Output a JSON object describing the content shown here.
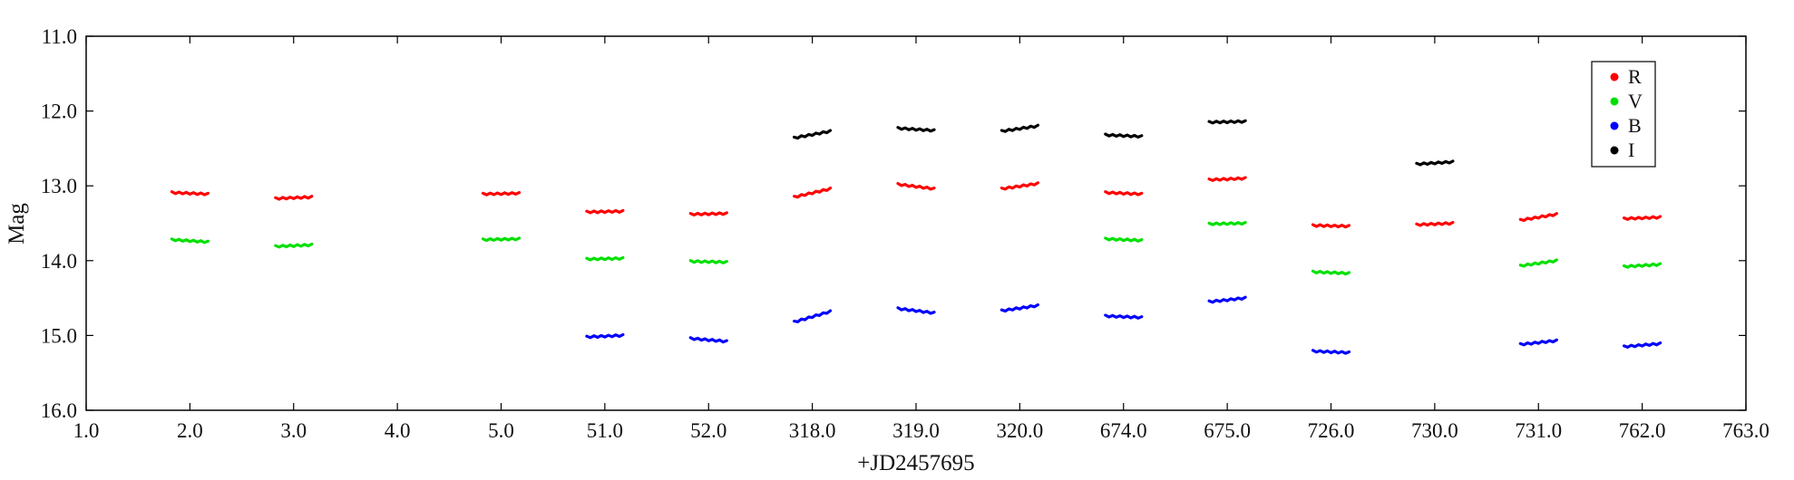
{
  "chart_data": {
    "type": "scatter",
    "title": "",
    "xlabel": "+JD2457695",
    "ylabel": "Mag",
    "x_tick_labels": [
      "1.0",
      "2.0",
      "3.0",
      "4.0",
      "5.0",
      "51.0",
      "52.0",
      "318.0",
      "319.0",
      "320.0",
      "674.0",
      "675.0",
      "726.0",
      "730.0",
      "731.0",
      "762.0",
      "763.0"
    ],
    "y_tick_labels": [
      "11.0",
      "12.0",
      "13.0",
      "14.0",
      "15.0",
      "16.0"
    ],
    "ylim": [
      16.0,
      11.0
    ],
    "y_inverted": true,
    "grid": false,
    "legend_position": "top-right",
    "series": [
      {
        "name": "R",
        "color": "#ff0000",
        "segments": [
          {
            "x": 2.0,
            "y_start": 13.09,
            "y_end": 13.11
          },
          {
            "x": 3.0,
            "y_start": 13.17,
            "y_end": 13.15
          },
          {
            "x": 5.0,
            "y_start": 13.11,
            "y_end": 13.1
          },
          {
            "x": 51.0,
            "y_start": 13.35,
            "y_end": 13.34
          },
          {
            "x": 52.0,
            "y_start": 13.38,
            "y_end": 13.37
          },
          {
            "x": 318.0,
            "y_start": 13.15,
            "y_end": 13.04
          },
          {
            "x": 319.0,
            "y_start": 12.98,
            "y_end": 13.04
          },
          {
            "x": 320.0,
            "y_start": 13.04,
            "y_end": 12.97
          },
          {
            "x": 674.0,
            "y_start": 13.09,
            "y_end": 13.11
          },
          {
            "x": 675.0,
            "y_start": 12.92,
            "y_end": 12.9
          },
          {
            "x": 726.0,
            "y_start": 13.53,
            "y_end": 13.54
          },
          {
            "x": 730.0,
            "y_start": 13.52,
            "y_end": 13.5
          },
          {
            "x": 731.0,
            "y_start": 13.46,
            "y_end": 13.38
          },
          {
            "x": 762.0,
            "y_start": 13.44,
            "y_end": 13.42
          }
        ]
      },
      {
        "name": "V",
        "color": "#00e000",
        "segments": [
          {
            "x": 2.0,
            "y_start": 13.72,
            "y_end": 13.75
          },
          {
            "x": 3.0,
            "y_start": 13.81,
            "y_end": 13.79
          },
          {
            "x": 5.0,
            "y_start": 13.72,
            "y_end": 13.71
          },
          {
            "x": 51.0,
            "y_start": 13.98,
            "y_end": 13.97
          },
          {
            "x": 52.0,
            "y_start": 14.01,
            "y_end": 14.02
          },
          {
            "x": 674.0,
            "y_start": 13.71,
            "y_end": 13.73
          },
          {
            "x": 675.0,
            "y_start": 13.51,
            "y_end": 13.5
          },
          {
            "x": 726.0,
            "y_start": 14.15,
            "y_end": 14.17
          },
          {
            "x": 731.0,
            "y_start": 14.07,
            "y_end": 14.0
          },
          {
            "x": 762.0,
            "y_start": 14.08,
            "y_end": 14.05
          }
        ]
      },
      {
        "name": "B",
        "color": "#0000ff",
        "segments": [
          {
            "x": 51.0,
            "y_start": 15.02,
            "y_end": 15.0
          },
          {
            "x": 52.0,
            "y_start": 15.04,
            "y_end": 15.08
          },
          {
            "x": 318.0,
            "y_start": 14.82,
            "y_end": 14.68
          },
          {
            "x": 319.0,
            "y_start": 14.64,
            "y_end": 14.7
          },
          {
            "x": 320.0,
            "y_start": 14.67,
            "y_end": 14.6
          },
          {
            "x": 674.0,
            "y_start": 14.74,
            "y_end": 14.76
          },
          {
            "x": 675.0,
            "y_start": 14.55,
            "y_end": 14.5
          },
          {
            "x": 726.0,
            "y_start": 15.21,
            "y_end": 15.23
          },
          {
            "x": 731.0,
            "y_start": 15.12,
            "y_end": 15.07
          },
          {
            "x": 762.0,
            "y_start": 15.15,
            "y_end": 15.11
          }
        ]
      },
      {
        "name": "I",
        "color": "#000000",
        "segments": [
          {
            "x": 318.0,
            "y_start": 12.36,
            "y_end": 12.27
          },
          {
            "x": 319.0,
            "y_start": 12.23,
            "y_end": 12.26
          },
          {
            "x": 320.0,
            "y_start": 12.27,
            "y_end": 12.2
          },
          {
            "x": 674.0,
            "y_start": 12.32,
            "y_end": 12.34
          },
          {
            "x": 675.0,
            "y_start": 12.15,
            "y_end": 12.14
          },
          {
            "x": 730.0,
            "y_start": 12.71,
            "y_end": 12.68
          }
        ]
      }
    ]
  }
}
